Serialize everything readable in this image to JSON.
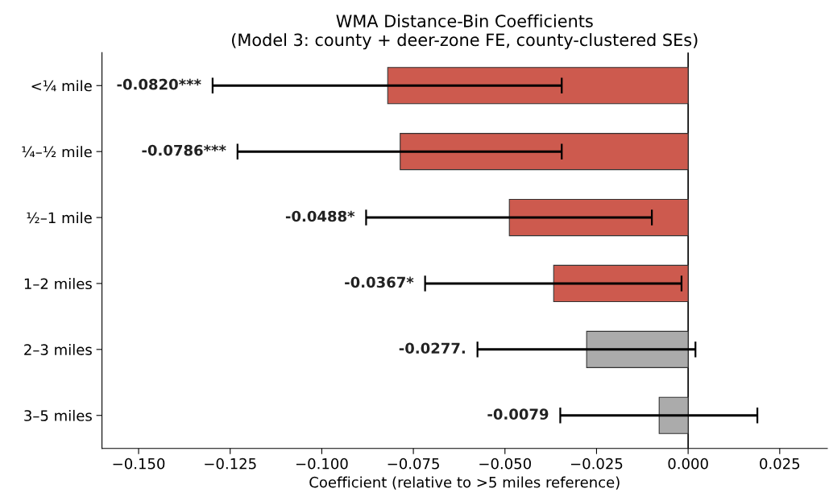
{
  "chart_data": {
    "type": "bar",
    "orientation": "horizontal",
    "title": "WMA Distance-Bin Coefficients\n(Model 3: county + deer-zone FE, county-clustered SEs)",
    "xlabel": "Coefficient (relative to >5 miles reference)",
    "categories": [
      "<¼ mile",
      "¼–½ mile",
      "½–1 mile",
      "1–2 miles",
      "2–3 miles",
      "3–5 miles"
    ],
    "values": [
      -0.082,
      -0.0786,
      -0.0488,
      -0.0367,
      -0.0277,
      -0.0079
    ],
    "colors": [
      "#cd5a4e",
      "#cd5a4e",
      "#cd5a4e",
      "#cd5a4e",
      "#ababab",
      "#ababab"
    ],
    "errors": [
      [
        -0.1298,
        -0.0345
      ],
      [
        -0.123,
        -0.0345
      ],
      [
        -0.0879,
        -0.0099
      ],
      [
        -0.0718,
        -0.0018
      ],
      [
        -0.0575,
        0.002
      ],
      [
        -0.0349,
        0.0189
      ]
    ],
    "annotations": [
      {
        "text": "-0.0820***",
        "x": -0.1298,
        "y": "<¼ mile"
      },
      {
        "text": "-0.0786***",
        "x": -0.123,
        "y": "¼–½ mile"
      },
      {
        "text": "-0.0488*",
        "x": -0.0879,
        "y": "½–1 mile"
      },
      {
        "text": "-0.0367*",
        "x": -0.0718,
        "y": "1–2 miles"
      },
      {
        "text": "-0.0277.",
        "x": -0.0575,
        "y": "2–3 miles"
      },
      {
        "text": "-0.0079",
        "x": -0.0349,
        "y": "3–5 miles"
      }
    ],
    "xlim": [
      -0.16,
      0.038
    ],
    "xticks": [
      {
        "value": -0.15,
        "label": "−0.150"
      },
      {
        "value": -0.125,
        "label": "−0.125"
      },
      {
        "value": -0.1,
        "label": "−0.100"
      },
      {
        "value": -0.075,
        "label": "−0.075"
      },
      {
        "value": -0.05,
        "label": "−0.050"
      },
      {
        "value": -0.025,
        "label": "−0.025"
      },
      {
        "value": 0,
        "label": "0.000"
      },
      {
        "value": 0.025,
        "label": "0.025"
      }
    ],
    "ref_lines": [
      {
        "axis": "x",
        "value": 0,
        "color": "#000000"
      }
    ],
    "grid": false,
    "legend": false
  }
}
